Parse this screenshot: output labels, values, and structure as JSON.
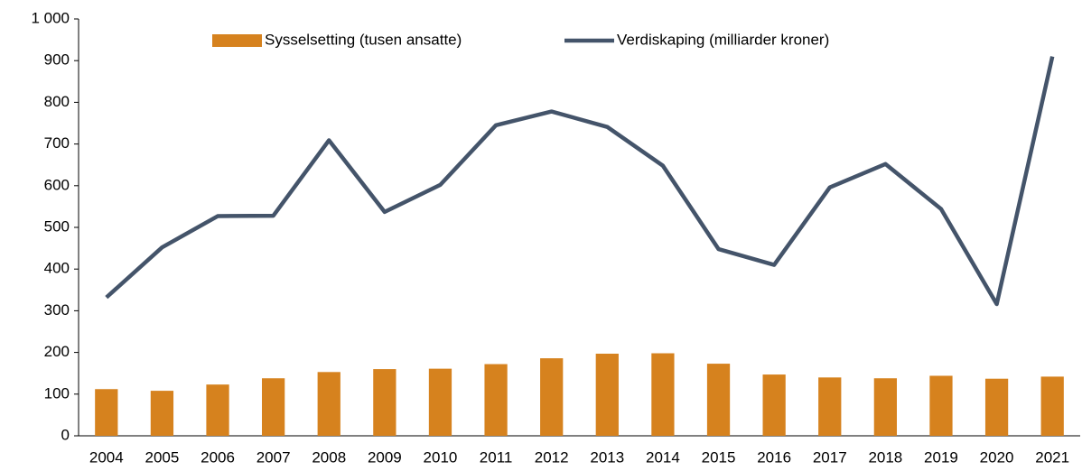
{
  "chart_data": {
    "type": "bar",
    "categories": [
      "2004",
      "2005",
      "2006",
      "2007",
      "2008",
      "2009",
      "2010",
      "2011",
      "2012",
      "2013",
      "2014",
      "2015",
      "2016",
      "2017",
      "2018",
      "2019",
      "2020",
      "2021"
    ],
    "series": [
      {
        "name": "Sysselsetting (tusen ansatte)",
        "type": "bar",
        "color": "#d6821e",
        "values": [
          112,
          108,
          123,
          138,
          153,
          160,
          161,
          172,
          186,
          197,
          198,
          173,
          147,
          140,
          138,
          144,
          137,
          142
        ]
      },
      {
        "name": "Verdiskaping (milliarder kroner)",
        "type": "line",
        "color": "#44546a",
        "values": [
          332,
          452,
          527,
          528,
          709,
          537,
          602,
          745,
          778,
          741,
          648,
          448,
          410,
          596,
          652,
          544,
          316,
          910
        ]
      }
    ],
    "ylim": [
      0,
      1000
    ],
    "yticks": [
      0,
      100,
      200,
      300,
      400,
      500,
      600,
      700,
      800,
      900,
      {
        "value": 1000,
        "label": "1 000"
      }
    ],
    "legend": "top"
  }
}
